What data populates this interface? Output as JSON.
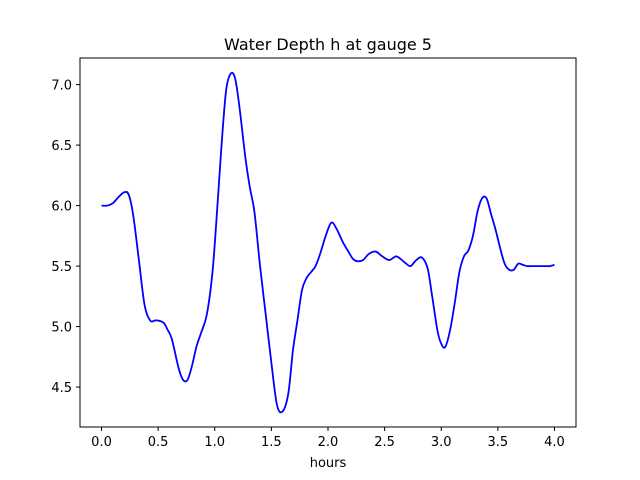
{
  "chart_data": {
    "type": "line",
    "title": "Water Depth h at gauge 5",
    "xlabel": "hours",
    "ylabel": "",
    "xlim": [
      -0.19,
      4.19
    ],
    "ylim": [
      4.17,
      7.22
    ],
    "xticks": [
      0.0,
      0.5,
      1.0,
      1.5,
      2.0,
      2.5,
      3.0,
      3.5,
      4.0
    ],
    "xtick_labels": [
      "0.0",
      "0.5",
      "1.0",
      "1.5",
      "2.0",
      "2.5",
      "3.0",
      "3.5",
      "4.0"
    ],
    "yticks": [
      4.5,
      5.0,
      5.5,
      6.0,
      6.5,
      7.0
    ],
    "ytick_labels": [
      "4.5",
      "5.0",
      "5.5",
      "6.0",
      "6.5",
      "7.0"
    ],
    "grid": false,
    "legend": "none",
    "series": [
      {
        "color": "#0000ff",
        "x": [
          0.0,
          0.05,
          0.1,
          0.15,
          0.2,
          0.24,
          0.28,
          0.33,
          0.38,
          0.43,
          0.47,
          0.5,
          0.55,
          0.58,
          0.62,
          0.68,
          0.72,
          0.76,
          0.8,
          0.84,
          0.88,
          0.93,
          0.98,
          1.02,
          1.06,
          1.1,
          1.14,
          1.18,
          1.22,
          1.27,
          1.31,
          1.35,
          1.4,
          1.45,
          1.5,
          1.55,
          1.6,
          1.65,
          1.69,
          1.73,
          1.77,
          1.81,
          1.85,
          1.89,
          1.93,
          1.98,
          2.03,
          2.08,
          2.13,
          2.18,
          2.22,
          2.26,
          2.31,
          2.36,
          2.42,
          2.48,
          2.54,
          2.6,
          2.64,
          2.69,
          2.73,
          2.78,
          2.83,
          2.88,
          2.92,
          2.97,
          3.01,
          3.04,
          3.08,
          3.12,
          3.16,
          3.2,
          3.24,
          3.28,
          3.32,
          3.36,
          3.4,
          3.44,
          3.48,
          3.52,
          3.56,
          3.6,
          3.64,
          3.68,
          3.72,
          3.76,
          3.8,
          3.84,
          3.88,
          3.92,
          3.96,
          4.0
        ],
        "y": [
          6.0,
          6.0,
          6.02,
          6.07,
          6.11,
          6.09,
          5.92,
          5.55,
          5.18,
          5.05,
          5.05,
          5.05,
          5.03,
          4.98,
          4.9,
          4.66,
          4.56,
          4.56,
          4.68,
          4.84,
          4.95,
          5.1,
          5.45,
          5.95,
          6.5,
          6.95,
          7.09,
          7.05,
          6.8,
          6.4,
          6.15,
          5.95,
          5.5,
          5.1,
          4.7,
          4.35,
          4.3,
          4.45,
          4.8,
          5.05,
          5.3,
          5.4,
          5.45,
          5.5,
          5.6,
          5.75,
          5.86,
          5.8,
          5.7,
          5.62,
          5.56,
          5.54,
          5.55,
          5.6,
          5.62,
          5.58,
          5.55,
          5.58,
          5.56,
          5.52,
          5.5,
          5.55,
          5.57,
          5.48,
          5.25,
          4.95,
          4.84,
          4.84,
          4.98,
          5.2,
          5.45,
          5.58,
          5.63,
          5.75,
          5.95,
          6.06,
          6.06,
          5.93,
          5.8,
          5.65,
          5.52,
          5.47,
          5.47,
          5.52,
          5.51,
          5.5,
          5.5,
          5.5,
          5.5,
          5.5,
          5.5,
          5.51
        ]
      }
    ]
  }
}
